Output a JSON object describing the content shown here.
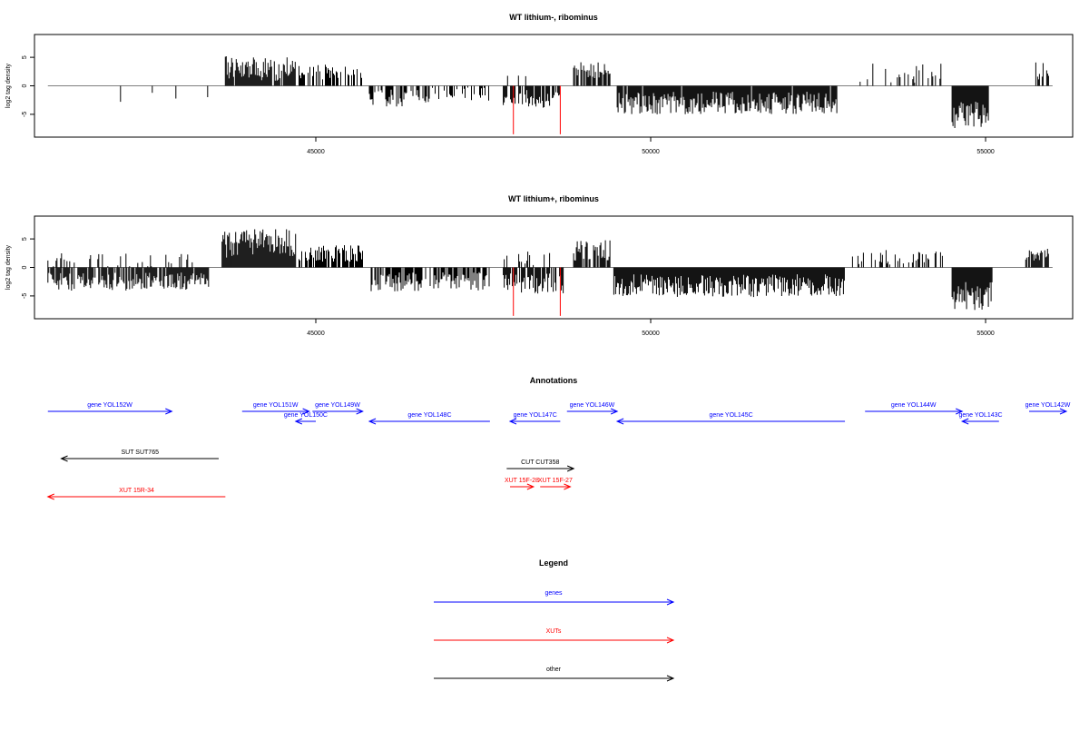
{
  "chart_data": [
    {
      "type": "bar",
      "title": "WT lithium-, ribominus",
      "xlabel": "",
      "ylabel": "log2 tag density",
      "xlim": [
        40800,
        56300
      ],
      "ylim": [
        -9,
        9
      ],
      "xticks": [
        45000,
        50000,
        55000
      ],
      "yticks": [
        -5,
        0,
        5
      ],
      "baseline": 0,
      "bar_color": "#000000",
      "marker_color": "#ff0000",
      "red_markers": [
        {
          "x": 47950,
          "y": -9
        },
        {
          "x": 48650,
          "y": -9
        }
      ],
      "segments": [
        {
          "from": 41000,
          "to": 43450,
          "sign": -1,
          "mean": 1.6,
          "amp": 1.6,
          "density": 0.02
        },
        {
          "from": 43650,
          "to": 44700,
          "sign": 1,
          "mean": 3.0,
          "amp": 2.2,
          "density": 0.9
        },
        {
          "from": 44750,
          "to": 45700,
          "sign": 1,
          "mean": 2.4,
          "amp": 1.3,
          "density": 0.55
        },
        {
          "from": 45800,
          "to": 46700,
          "sign": -1,
          "mean": 2.2,
          "amp": 1.6,
          "density": 0.55
        },
        {
          "from": 46700,
          "to": 47600,
          "sign": -1,
          "mean": 1.5,
          "amp": 1.2,
          "density": 0.35
        },
        {
          "from": 47800,
          "to": 48650,
          "sign": -1,
          "mean": 2.3,
          "amp": 1.6,
          "density": 0.75
        },
        {
          "from": 47850,
          "to": 48300,
          "sign": 1,
          "mean": 1.6,
          "amp": 1.0,
          "density": 0.18
        },
        {
          "from": 48850,
          "to": 49400,
          "sign": 1,
          "mean": 2.8,
          "amp": 1.5,
          "density": 0.7
        },
        {
          "from": 49500,
          "to": 52800,
          "sign": -1,
          "mean": 3.0,
          "amp": 2.0,
          "density": 0.95
        },
        {
          "from": 53100,
          "to": 54400,
          "sign": 1,
          "mean": 2.2,
          "amp": 1.7,
          "density": 0.3
        },
        {
          "from": 54500,
          "to": 55050,
          "sign": -1,
          "mean": 5.2,
          "amp": 2.5,
          "density": 1.0
        },
        {
          "from": 55750,
          "to": 55950,
          "sign": 1,
          "mean": 2.8,
          "amp": 2.0,
          "density": 0.6
        }
      ]
    },
    {
      "type": "bar",
      "title": "WT lithium+, ribominus",
      "xlabel": "",
      "ylabel": "log2 tag density",
      "xlim": [
        40800,
        56300
      ],
      "ylim": [
        -9,
        9
      ],
      "xticks": [
        45000,
        50000,
        55000
      ],
      "yticks": [
        -5,
        0,
        5
      ],
      "baseline": 0,
      "bar_color": "#000000",
      "marker_color": "#ff0000",
      "red_markers": [
        {
          "x": 47950,
          "y": -9
        },
        {
          "x": 48650,
          "y": -9
        }
      ],
      "segments": [
        {
          "from": 41000,
          "to": 43400,
          "sign": -1,
          "mean": 2.5,
          "amp": 1.6,
          "density": 0.85
        },
        {
          "from": 41000,
          "to": 43300,
          "sign": 1,
          "mean": 1.2,
          "amp": 1.3,
          "density": 0.2
        },
        {
          "from": 43600,
          "to": 44700,
          "sign": 1,
          "mean": 4.2,
          "amp": 2.5,
          "density": 1.0
        },
        {
          "from": 44750,
          "to": 45700,
          "sign": 1,
          "mean": 2.5,
          "amp": 1.5,
          "density": 0.7
        },
        {
          "from": 45800,
          "to": 47600,
          "sign": -1,
          "mean": 2.5,
          "amp": 1.7,
          "density": 0.7
        },
        {
          "from": 47800,
          "to": 48700,
          "sign": -1,
          "mean": 2.8,
          "amp": 1.8,
          "density": 0.8
        },
        {
          "from": 47800,
          "to": 48500,
          "sign": 1,
          "mean": 1.6,
          "amp": 1.2,
          "density": 0.2
        },
        {
          "from": 48850,
          "to": 49400,
          "sign": 1,
          "mean": 3.0,
          "amp": 1.8,
          "density": 0.8
        },
        {
          "from": 49450,
          "to": 52900,
          "sign": -1,
          "mean": 3.2,
          "amp": 2.0,
          "density": 1.0
        },
        {
          "from": 53000,
          "to": 54400,
          "sign": 1,
          "mean": 1.8,
          "amp": 1.3,
          "density": 0.35
        },
        {
          "from": 54500,
          "to": 55100,
          "sign": -1,
          "mean": 5.0,
          "amp": 2.5,
          "density": 1.0
        },
        {
          "from": 55600,
          "to": 55950,
          "sign": 1,
          "mean": 2.5,
          "amp": 1.3,
          "density": 0.9
        }
      ]
    }
  ],
  "annotations": {
    "title": "Annotations",
    "items": [
      {
        "label": "gene YOL152W",
        "from": 41000,
        "to": 42850,
        "row": 0,
        "dir": "right",
        "kind": "gene"
      },
      {
        "label": "gene YOL151W",
        "from": 43900,
        "to": 44900,
        "row": 0,
        "dir": "right",
        "kind": "gene"
      },
      {
        "label": "gene YOL149W",
        "from": 44950,
        "to": 45700,
        "row": 0,
        "dir": "right",
        "kind": "gene"
      },
      {
        "label": "gene YOL148C",
        "from": 45800,
        "to": 47600,
        "row": 1,
        "dir": "left",
        "kind": "gene"
      },
      {
        "label": "gene YOL150C",
        "from": 44700,
        "to": 45000,
        "row": 1,
        "dir": "left",
        "kind": "gene"
      },
      {
        "label": "gene YOL147C",
        "from": 47900,
        "to": 48650,
        "row": 1,
        "dir": "left",
        "kind": "gene"
      },
      {
        "label": "gene YOL146W",
        "from": 48750,
        "to": 49500,
        "row": 0,
        "dir": "right",
        "kind": "gene"
      },
      {
        "label": "gene YOL145C",
        "from": 49500,
        "to": 52900,
        "row": 1,
        "dir": "left",
        "kind": "gene"
      },
      {
        "label": "gene YOL144W",
        "from": 53200,
        "to": 54650,
        "row": 0,
        "dir": "right",
        "kind": "gene"
      },
      {
        "label": "gene YOL143C",
        "from": 54650,
        "to": 55200,
        "row": 1,
        "dir": "left",
        "kind": "gene"
      },
      {
        "label": "gene YOL142W",
        "from": 55650,
        "to": 56300,
        "row": 0,
        "dir": "right",
        "kind": "gene"
      },
      {
        "label": "SUT SUT765",
        "from": 41200,
        "to": 43550,
        "row": 3,
        "dir": "left",
        "kind": "other"
      },
      {
        "label": "CUT CUT358",
        "from": 47850,
        "to": 48850,
        "row": 4,
        "dir": "right",
        "kind": "other"
      },
      {
        "label": "XUT 15F-28",
        "from": 47900,
        "to": 48250,
        "row": 5,
        "dir": "right",
        "kind": "xut"
      },
      {
        "label": "XUT 15F-27",
        "from": 48350,
        "to": 48800,
        "row": 5,
        "dir": "right",
        "kind": "xut"
      },
      {
        "label": "XUT 15R-34",
        "from": 41000,
        "to": 43650,
        "row": 6,
        "dir": "left",
        "kind": "xut"
      }
    ]
  },
  "legend": {
    "title": "Legend",
    "items": [
      {
        "label": "genes",
        "kind": "gene"
      },
      {
        "label": "XUTs",
        "kind": "xut"
      },
      {
        "label": "other",
        "kind": "other"
      }
    ]
  },
  "colors": {
    "gene": "#0000ff",
    "xut": "#ff0000",
    "other": "#000000",
    "axis": "#000000"
  }
}
